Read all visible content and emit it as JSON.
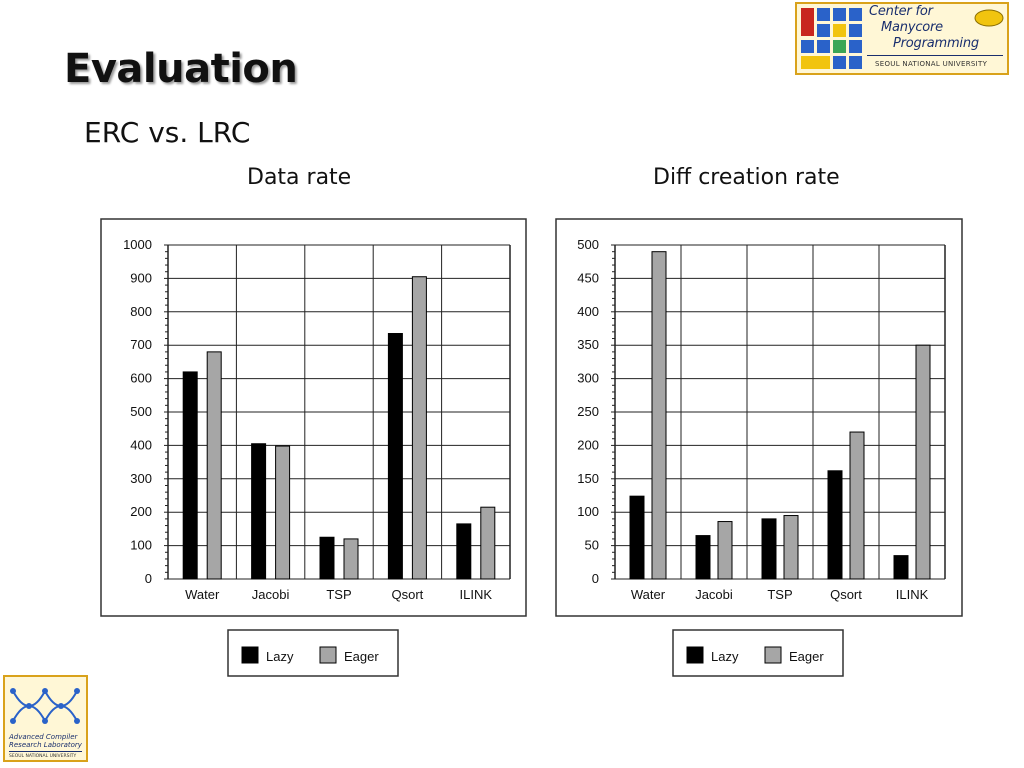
{
  "slide": {
    "title": "Evaluation",
    "subtitle": "ERC vs. LRC"
  },
  "logos": {
    "cmp": {
      "line1": "Center for",
      "line2": "Manycore",
      "line3": "Programming",
      "university": "SEOUL NATIONAL UNIVERSITY"
    },
    "acrl": {
      "line1": "Advanced Compiler",
      "line2": "Research Laboratory",
      "university": "SEOUL NATIONAL UNIVERSITY"
    }
  },
  "colors": {
    "lazy": "#000000",
    "eager": "#a6a6a6",
    "logo_border": "#d9a21b",
    "logo_blue": "#2a62c9"
  },
  "chart_data": [
    {
      "type": "bar",
      "title": "Data rate",
      "categories": [
        "Water",
        "Jacobi",
        "TSP",
        "Qsort",
        "ILINK"
      ],
      "series": [
        {
          "name": "Lazy",
          "values": [
            620,
            405,
            125,
            735,
            165
          ]
        },
        {
          "name": "Eager",
          "values": [
            680,
            398,
            120,
            905,
            215
          ]
        }
      ],
      "ylim": [
        0,
        1000
      ],
      "yticks": [
        0,
        100,
        200,
        300,
        400,
        500,
        600,
        700,
        800,
        900,
        1000
      ],
      "grid": true,
      "legend_position": "bottom"
    },
    {
      "type": "bar",
      "title": "Diff creation rate",
      "categories": [
        "Water",
        "Jacobi",
        "TSP",
        "Qsort",
        "ILINK"
      ],
      "series": [
        {
          "name": "Lazy",
          "values": [
            124,
            65,
            90,
            162,
            35
          ]
        },
        {
          "name": "Eager",
          "values": [
            490,
            86,
            95,
            220,
            350
          ]
        }
      ],
      "ylim": [
        0,
        500
      ],
      "yticks": [
        0,
        50,
        100,
        150,
        200,
        250,
        300,
        350,
        400,
        450,
        500
      ],
      "grid": true,
      "legend_position": "bottom"
    }
  ]
}
